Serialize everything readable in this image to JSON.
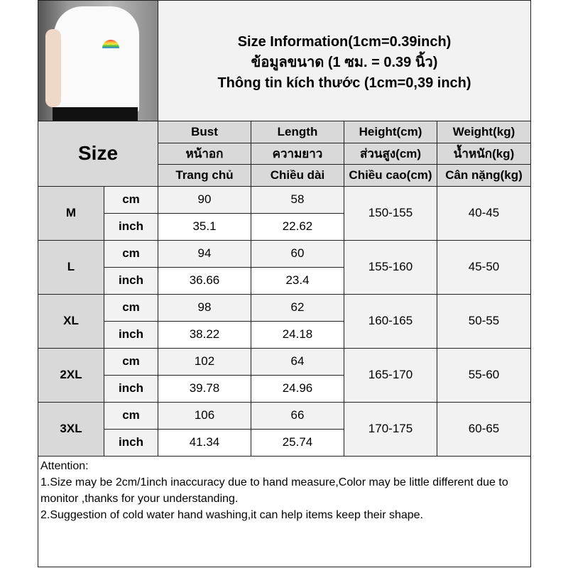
{
  "title_lines": [
    "Size Information(1cm=0.39inch)",
    "ข้อมูลขนาด (1 ซม. = 0.39 นิ้ว)",
    "Thông tin kích thước (1cm=0,39 inch)"
  ],
  "photo": "model wearing white t-shirt with rainbow logo",
  "header": {
    "size_label": "Size",
    "columns": [
      [
        "Bust",
        "หน้าอก",
        "Trang chủ"
      ],
      [
        "Length",
        "ความยาว",
        "Chiều dài"
      ],
      [
        "Height(cm)",
        "ส่วนสูง(cm)",
        "Chiều cao(cm)"
      ],
      [
        "Weight(kg)",
        "น้ำหนัก(kg)",
        "Cân nặng(kg)"
      ]
    ]
  },
  "units": {
    "cm": "cm",
    "inch": "inch"
  },
  "rows": [
    {
      "size": "M",
      "bust_cm": "90",
      "length_cm": "58",
      "bust_inch": "35.1",
      "length_inch": "22.62",
      "height": "150-155",
      "weight": "40-45"
    },
    {
      "size": "L",
      "bust_cm": "94",
      "length_cm": "60",
      "bust_inch": "36.66",
      "length_inch": "23.4",
      "height": "155-160",
      "weight": "45-50"
    },
    {
      "size": "XL",
      "bust_cm": "98",
      "length_cm": "62",
      "bust_inch": "38.22",
      "length_inch": "24.18",
      "height": "160-165",
      "weight": "50-55"
    },
    {
      "size": "2XL",
      "bust_cm": "102",
      "length_cm": "64",
      "bust_inch": "39.78",
      "length_inch": "24.96",
      "height": "165-170",
      "weight": "55-60"
    },
    {
      "size": "3XL",
      "bust_cm": "106",
      "length_cm": "66",
      "bust_inch": "41.34",
      "length_inch": "25.74",
      "height": "170-175",
      "weight": "60-65"
    }
  ],
  "attention": {
    "heading": "Attention:",
    "line1": "1.Size may be 2cm/1inch inaccuracy due to hand measure,Color may be little different due to monitor ,thanks for your understanding.",
    "line2": "2.Suggestion of cold water hand washing,it can help items keep their shape."
  },
  "colors": {
    "header_gray": "#d9d9d9",
    "light_gray": "#f2f2f2",
    "border": "#222222"
  }
}
